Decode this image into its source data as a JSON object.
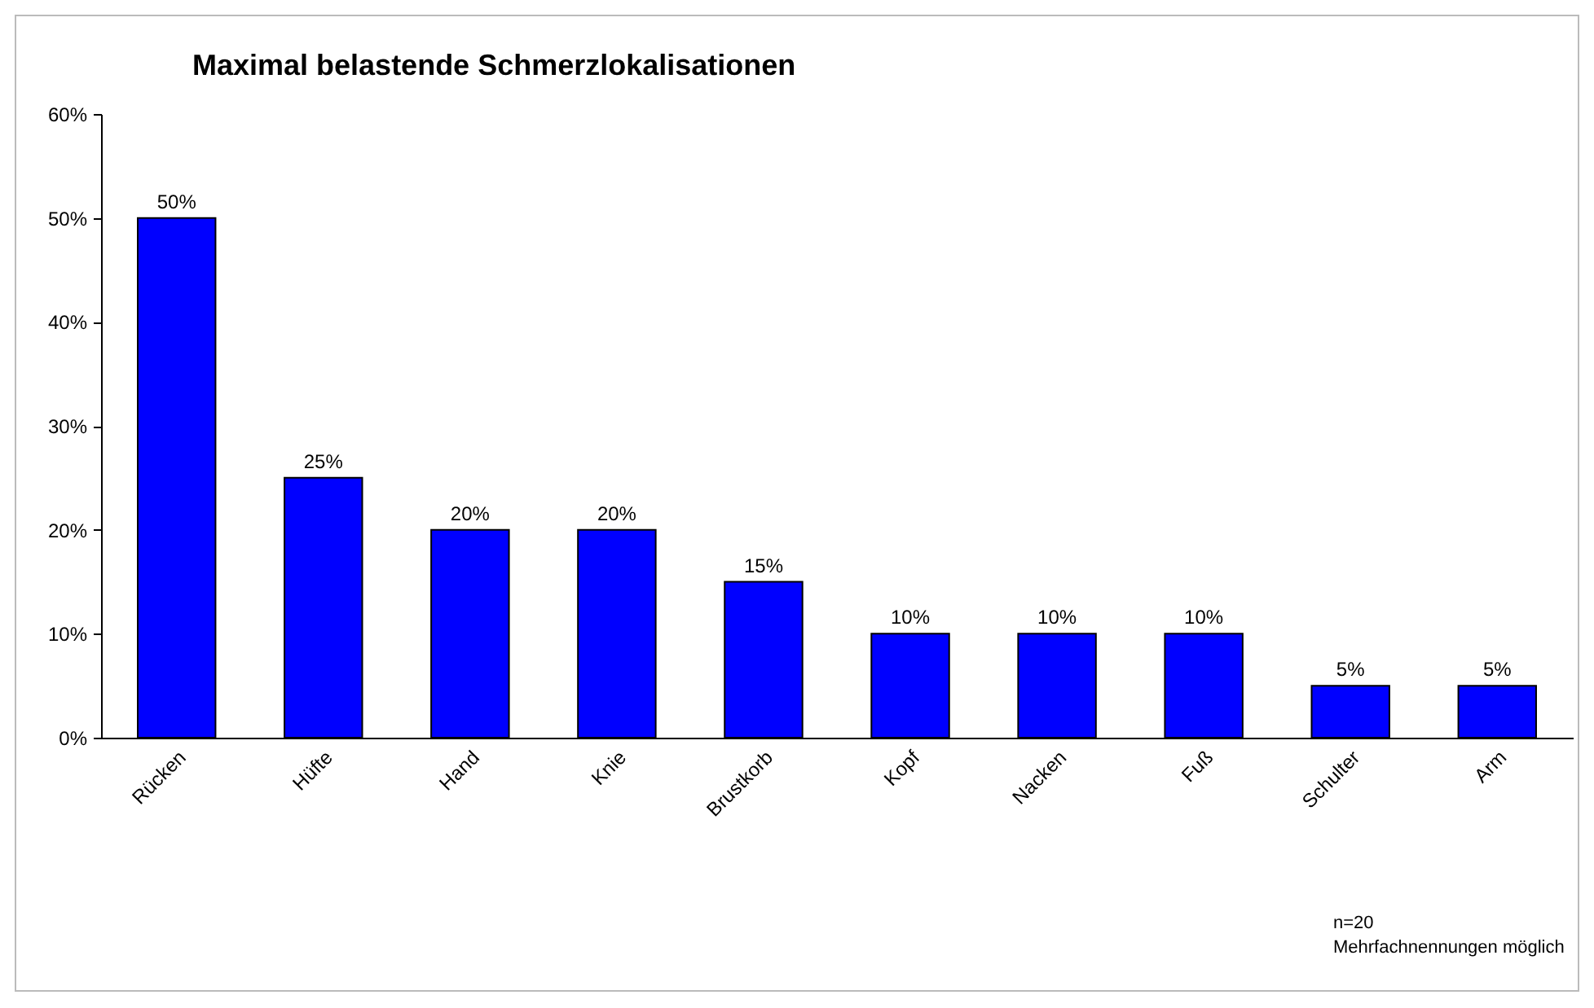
{
  "chart_data": {
    "type": "bar",
    "title": "Maximal belastende Schmerzlokalisationen",
    "categories": [
      "Rücken",
      "Hüfte",
      "Hand",
      "Knie",
      "Brustkorb",
      "Kopf",
      "Nacken",
      "Fuß",
      "Schulter",
      "Arm"
    ],
    "values": [
      50,
      25,
      20,
      20,
      15,
      10,
      10,
      10,
      5,
      5
    ],
    "value_labels": [
      "50%",
      "25%",
      "20%",
      "20%",
      "15%",
      "10%",
      "10%",
      "10%",
      "5%",
      "5%"
    ],
    "color": "#0000ff",
    "ylim": [
      0,
      60
    ],
    "yticks": [
      {
        "value": 0,
        "label": "0%"
      },
      {
        "value": 10,
        "label": "10%"
      },
      {
        "value": 20,
        "label": "20%"
      },
      {
        "value": 30,
        "label": "30%"
      },
      {
        "value": 40,
        "label": "40%"
      },
      {
        "value": 50,
        "label": "50%"
      },
      {
        "value": 60,
        "label": "60%"
      }
    ],
    "grid": false,
    "annotations": [
      "n=20",
      "Mehrfachnennungen möglich"
    ]
  }
}
